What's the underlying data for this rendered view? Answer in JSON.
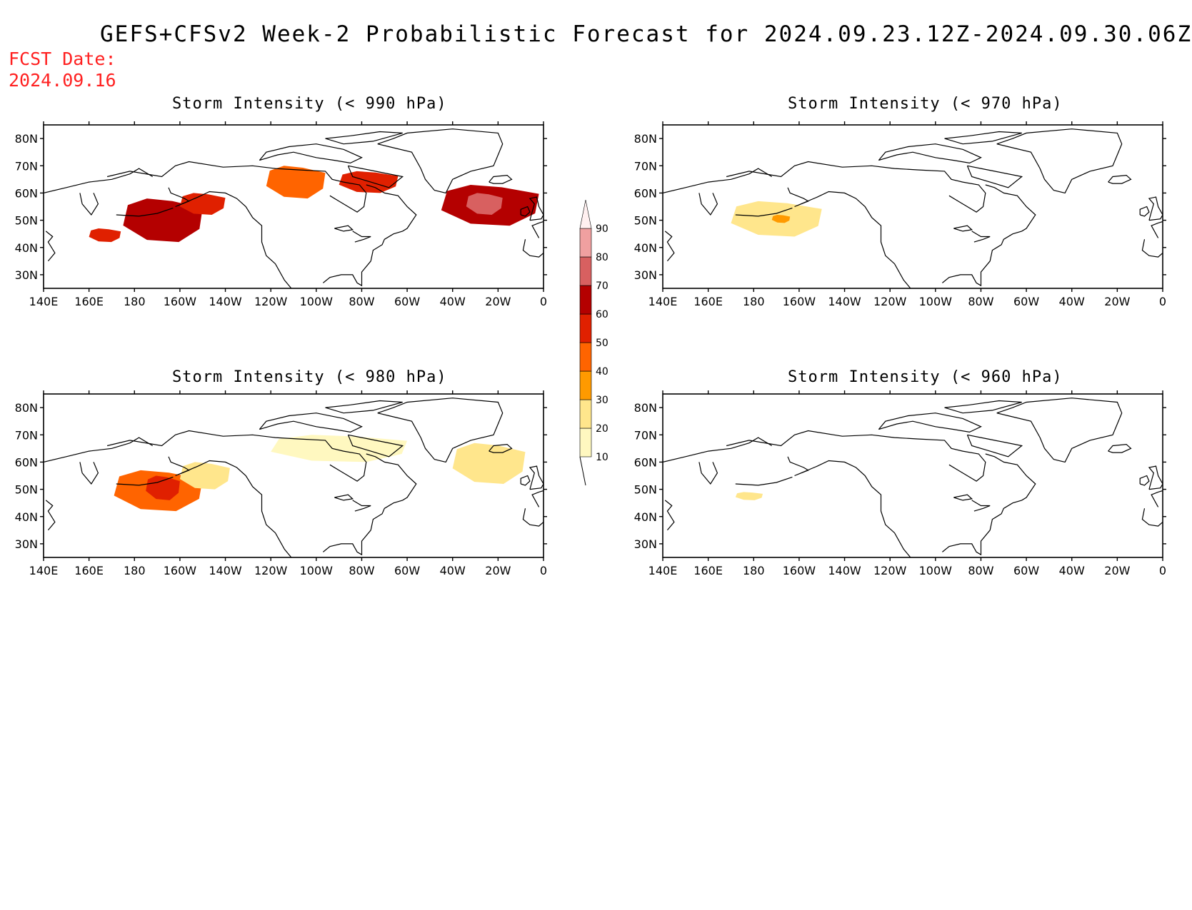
{
  "title": "GEFS+CFSv2 Week-2 Probabilistic Forecast for 2024.09.23.12Z-2024.09.30.06Z",
  "fcst_label": "FCST Date:",
  "fcst_date": "2024.09.16",
  "colorbar": {
    "levels": [
      "10",
      "20",
      "30",
      "40",
      "50",
      "60",
      "70",
      "80",
      "90"
    ],
    "colors": [
      "#fff8c0",
      "#ffe68c",
      "#ff9a00",
      "#ff6400",
      "#e02000",
      "#b40000",
      "#d86060",
      "#f0a0a0",
      "#fff0f0"
    ]
  },
  "panels": [
    {
      "id": "p990",
      "title": "Storm Intensity (< 990 hPa)",
      "lat_labels": [
        "80N",
        "70N",
        "60N",
        "50N",
        "40N",
        "30N"
      ],
      "lon_labels": [
        "140E",
        "160E",
        "180",
        "160W",
        "140W",
        "120W",
        "100W",
        "80W",
        "60W",
        "40W",
        "20W",
        "0"
      ],
      "blobs": [
        {
          "lon": [
            -172,
            -155
          ],
          "lat": [
            48,
            57
          ],
          "level": 6
        },
        {
          "lon": [
            -185,
            -150
          ],
          "lat": [
            42,
            58
          ],
          "level": 5
        },
        {
          "lon": [
            -160,
            -140
          ],
          "lat": [
            52,
            60
          ],
          "level": 4
        },
        {
          "lon": [
            -200,
            -186
          ],
          "lat": [
            42,
            47
          ],
          "level": 4
        },
        {
          "lon": [
            -122,
            -96
          ],
          "lat": [
            58,
            70
          ],
          "level": 3
        },
        {
          "lon": [
            -90,
            -64
          ],
          "lat": [
            60,
            68
          ],
          "level": 4
        },
        {
          "lon": [
            -45,
            -2
          ],
          "lat": [
            48,
            63
          ],
          "level": 5
        },
        {
          "lon": [
            -34,
            -18
          ],
          "lat": [
            52,
            60
          ],
          "level": 6
        }
      ]
    },
    {
      "id": "p980",
      "title": "Storm Intensity (< 980 hPa)",
      "lat_labels": [
        "80N",
        "70N",
        "60N",
        "50N",
        "40N",
        "30N"
      ],
      "lon_labels": [
        "140E",
        "160E",
        "180",
        "160W",
        "140W",
        "120W",
        "100W",
        "80W",
        "60W",
        "40W",
        "20W",
        "0"
      ],
      "blobs": [
        {
          "lon": [
            -189,
            -150
          ],
          "lat": [
            42,
            57
          ],
          "level": 3
        },
        {
          "lon": [
            -175,
            -160
          ],
          "lat": [
            46,
            55
          ],
          "level": 4
        },
        {
          "lon": [
            -160,
            -138
          ],
          "lat": [
            50,
            60
          ],
          "level": 1
        },
        {
          "lon": [
            -120,
            -60
          ],
          "lat": [
            60,
            70
          ],
          "level": 0
        },
        {
          "lon": [
            -40,
            -8
          ],
          "lat": [
            52,
            67
          ],
          "level": 1
        }
      ]
    },
    {
      "id": "p970",
      "title": "Storm Intensity (< 970 hPa)",
      "lat_labels": [
        "80N",
        "70N",
        "60N",
        "50N",
        "40N",
        "30N"
      ],
      "lon_labels": [
        "140E",
        "160E",
        "180",
        "160W",
        "140W",
        "120W",
        "100W",
        "80W",
        "60W",
        "40W",
        "20W",
        "0"
      ],
      "blobs": [
        {
          "lon": [
            -190,
            -150
          ],
          "lat": [
            44,
            57
          ],
          "level": 1
        },
        {
          "lon": [
            -172,
            -164
          ],
          "lat": [
            49,
            52
          ],
          "level": 2
        }
      ]
    },
    {
      "id": "p960",
      "title": "Storm Intensity (< 960 hPa)",
      "lat_labels": [
        "80N",
        "70N",
        "60N",
        "50N",
        "40N",
        "30N"
      ],
      "lon_labels": [
        "140E",
        "160E",
        "180",
        "160W",
        "140W",
        "120W",
        "100W",
        "80W",
        "60W",
        "40W",
        "20W",
        "0"
      ],
      "blobs": [
        {
          "lon": [
            -188,
            -176
          ],
          "lat": [
            46,
            49
          ],
          "level": 1
        }
      ]
    }
  ]
}
